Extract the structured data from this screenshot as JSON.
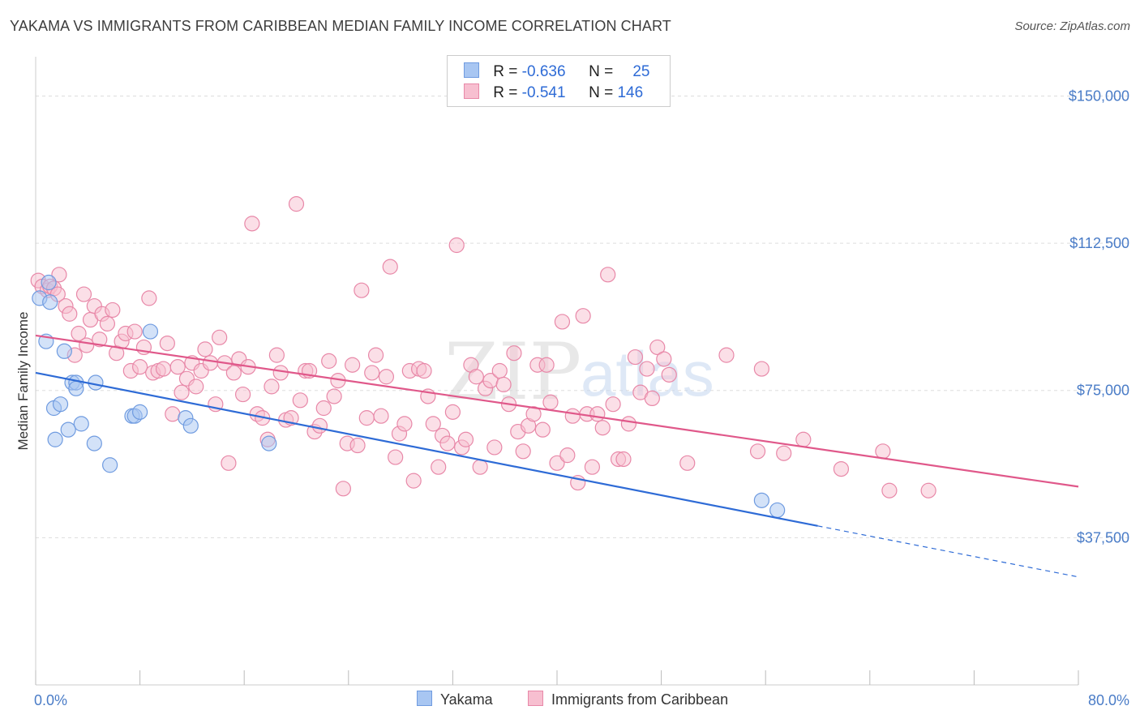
{
  "title": "YAKAMA VS IMMIGRANTS FROM CARIBBEAN MEDIAN FAMILY INCOME CORRELATION CHART",
  "source": "Source: ZipAtlas.com",
  "watermark": {
    "zip": "ZIP",
    "atlas": "atlas"
  },
  "legend": {
    "rows": [
      {
        "r_label": "R = ",
        "r_value": "-0.636",
        "n_label": "N = ",
        "n_value": "25",
        "color": "#a8c6f2",
        "border": "#6f9be0"
      },
      {
        "r_label": "R = ",
        "r_value": "-0.541",
        "n_label": "N = ",
        "n_value": "146",
        "color": "#f7bfd0",
        "border": "#e888a8"
      }
    ]
  },
  "bottom_legend": [
    {
      "label": "Yakama",
      "color": "#a8c6f2",
      "border": "#6f9be0"
    },
    {
      "label": "Immigrants from Caribbean",
      "color": "#f7bfd0",
      "border": "#e888a8"
    }
  ],
  "chart_data": {
    "type": "scatter",
    "title": "YAKAMA VS IMMIGRANTS FROM CARIBBEAN MEDIAN FAMILY INCOME CORRELATION CHART",
    "xlabel": "",
    "ylabel": "Median Family Income",
    "xlim": [
      0,
      80
    ],
    "ylim": [
      0,
      160000
    ],
    "x_tick_labels": [
      "0.0%",
      "80.0%"
    ],
    "y_ticks": [
      37500,
      75000,
      112500,
      150000
    ],
    "y_tick_labels": [
      "$37,500",
      "$75,000",
      "$112,500",
      "$150,000"
    ],
    "grid": true,
    "series": [
      {
        "name": "Yakama",
        "color": "#6f9be0",
        "fill": "#a8c6f2",
        "line_color": "#2e6bd6",
        "trend": {
          "x0": 0,
          "y0": 79500,
          "x1": 60,
          "y1": 40500,
          "dash_x1": 80,
          "dash_y1": 27500
        },
        "points": [
          [
            0.3,
            98500
          ],
          [
            1.0,
            102500
          ],
          [
            1.1,
            97500
          ],
          [
            0.8,
            87500
          ],
          [
            2.2,
            85000
          ],
          [
            2.8,
            77000
          ],
          [
            3.1,
            77000
          ],
          [
            4.6,
            77000
          ],
          [
            3.1,
            75500
          ],
          [
            1.4,
            70500
          ],
          [
            1.9,
            71500
          ],
          [
            3.5,
            66500
          ],
          [
            2.5,
            65000
          ],
          [
            1.5,
            62500
          ],
          [
            4.5,
            61500
          ],
          [
            5.7,
            56000
          ],
          [
            7.4,
            68500
          ],
          [
            7.6,
            68500
          ],
          [
            8.0,
            69500
          ],
          [
            8.8,
            90000
          ],
          [
            11.5,
            68000
          ],
          [
            11.9,
            66000
          ],
          [
            17.9,
            61500
          ],
          [
            55.7,
            47000
          ],
          [
            56.9,
            44500
          ]
        ]
      },
      {
        "name": "Immigrants from Caribbean",
        "color": "#e888a8",
        "fill": "#f7bfd0",
        "line_color": "#e0588a",
        "trend": {
          "x0": 0,
          "y0": 89000,
          "x1": 80,
          "y1": 50500
        },
        "points": [
          [
            0.2,
            103000
          ],
          [
            0.5,
            101500
          ],
          [
            0.9,
            100500
          ],
          [
            1.1,
            101500
          ],
          [
            1.4,
            101000
          ],
          [
            1.7,
            99500
          ],
          [
            1.8,
            104500
          ],
          [
            2.3,
            96500
          ],
          [
            2.6,
            94500
          ],
          [
            3.0,
            84000
          ],
          [
            3.3,
            89500
          ],
          [
            3.7,
            99500
          ],
          [
            3.9,
            86500
          ],
          [
            4.2,
            93000
          ],
          [
            4.5,
            96500
          ],
          [
            4.9,
            88000
          ],
          [
            5.1,
            94500
          ],
          [
            5.5,
            92000
          ],
          [
            5.9,
            95500
          ],
          [
            6.2,
            84500
          ],
          [
            6.6,
            87500
          ],
          [
            6.9,
            89500
          ],
          [
            7.3,
            80000
          ],
          [
            7.6,
            90000
          ],
          [
            8.0,
            81000
          ],
          [
            8.3,
            86000
          ],
          [
            8.7,
            98500
          ],
          [
            9.0,
            79500
          ],
          [
            9.4,
            80000
          ],
          [
            9.8,
            80500
          ],
          [
            10.1,
            87000
          ],
          [
            10.5,
            69000
          ],
          [
            10.9,
            81000
          ],
          [
            11.2,
            74500
          ],
          [
            11.6,
            78000
          ],
          [
            12.0,
            82000
          ],
          [
            12.3,
            76000
          ],
          [
            12.7,
            80000
          ],
          [
            13.0,
            85500
          ],
          [
            13.4,
            82000
          ],
          [
            13.8,
            71500
          ],
          [
            14.1,
            88500
          ],
          [
            14.5,
            82000
          ],
          [
            14.8,
            56500
          ],
          [
            15.2,
            79500
          ],
          [
            15.6,
            83000
          ],
          [
            15.9,
            74000
          ],
          [
            16.3,
            81000
          ],
          [
            16.6,
            117500
          ],
          [
            17.0,
            69000
          ],
          [
            17.4,
            68000
          ],
          [
            17.8,
            62500
          ],
          [
            18.1,
            76000
          ],
          [
            18.5,
            84000
          ],
          [
            18.8,
            79500
          ],
          [
            19.2,
            67500
          ],
          [
            19.6,
            68000
          ],
          [
            20.0,
            122500
          ],
          [
            20.3,
            72500
          ],
          [
            20.7,
            80000
          ],
          [
            21.0,
            80000
          ],
          [
            21.4,
            64500
          ],
          [
            21.8,
            66000
          ],
          [
            22.1,
            70500
          ],
          [
            22.5,
            82500
          ],
          [
            22.9,
            73500
          ],
          [
            23.2,
            77500
          ],
          [
            23.6,
            50000
          ],
          [
            23.9,
            61500
          ],
          [
            24.3,
            81500
          ],
          [
            24.7,
            61000
          ],
          [
            25.0,
            100500
          ],
          [
            25.4,
            68000
          ],
          [
            25.8,
            79500
          ],
          [
            26.1,
            84000
          ],
          [
            26.5,
            68500
          ],
          [
            26.9,
            78500
          ],
          [
            27.2,
            106500
          ],
          [
            27.6,
            58000
          ],
          [
            27.9,
            64000
          ],
          [
            28.3,
            66500
          ],
          [
            28.7,
            80000
          ],
          [
            29.0,
            52000
          ],
          [
            29.4,
            80500
          ],
          [
            29.8,
            80000
          ],
          [
            30.1,
            73500
          ],
          [
            30.5,
            66500
          ],
          [
            30.9,
            55500
          ],
          [
            31.2,
            63500
          ],
          [
            31.6,
            61500
          ],
          [
            32.0,
            69500
          ],
          [
            32.3,
            112000
          ],
          [
            32.7,
            60500
          ],
          [
            33.0,
            62500
          ],
          [
            33.4,
            81500
          ],
          [
            33.8,
            78500
          ],
          [
            34.1,
            55500
          ],
          [
            34.5,
            75500
          ],
          [
            34.9,
            77500
          ],
          [
            35.2,
            60500
          ],
          [
            35.6,
            80000
          ],
          [
            35.9,
            76500
          ],
          [
            36.3,
            71500
          ],
          [
            36.7,
            84500
          ],
          [
            37.0,
            64500
          ],
          [
            37.4,
            59500
          ],
          [
            37.8,
            66000
          ],
          [
            38.2,
            69000
          ],
          [
            38.5,
            81500
          ],
          [
            38.9,
            65000
          ],
          [
            39.2,
            81500
          ],
          [
            39.5,
            72000
          ],
          [
            40.0,
            56500
          ],
          [
            40.4,
            92500
          ],
          [
            40.8,
            58500
          ],
          [
            41.2,
            68500
          ],
          [
            41.6,
            51500
          ],
          [
            42.0,
            94000
          ],
          [
            42.3,
            69000
          ],
          [
            42.7,
            55500
          ],
          [
            43.1,
            69000
          ],
          [
            43.5,
            65500
          ],
          [
            43.9,
            104500
          ],
          [
            44.3,
            71500
          ],
          [
            44.7,
            57500
          ],
          [
            45.1,
            57500
          ],
          [
            45.5,
            66500
          ],
          [
            46.0,
            83500
          ],
          [
            46.4,
            74500
          ],
          [
            46.9,
            80500
          ],
          [
            47.3,
            73000
          ],
          [
            47.7,
            86000
          ],
          [
            48.2,
            83000
          ],
          [
            48.6,
            79000
          ],
          [
            50.0,
            56500
          ],
          [
            53.0,
            84000
          ],
          [
            55.4,
            59500
          ],
          [
            55.7,
            80500
          ],
          [
            57.4,
            59000
          ],
          [
            58.9,
            62500
          ],
          [
            61.8,
            55000
          ],
          [
            65.0,
            59500
          ],
          [
            65.5,
            49500
          ],
          [
            68.5,
            49500
          ]
        ]
      }
    ]
  }
}
